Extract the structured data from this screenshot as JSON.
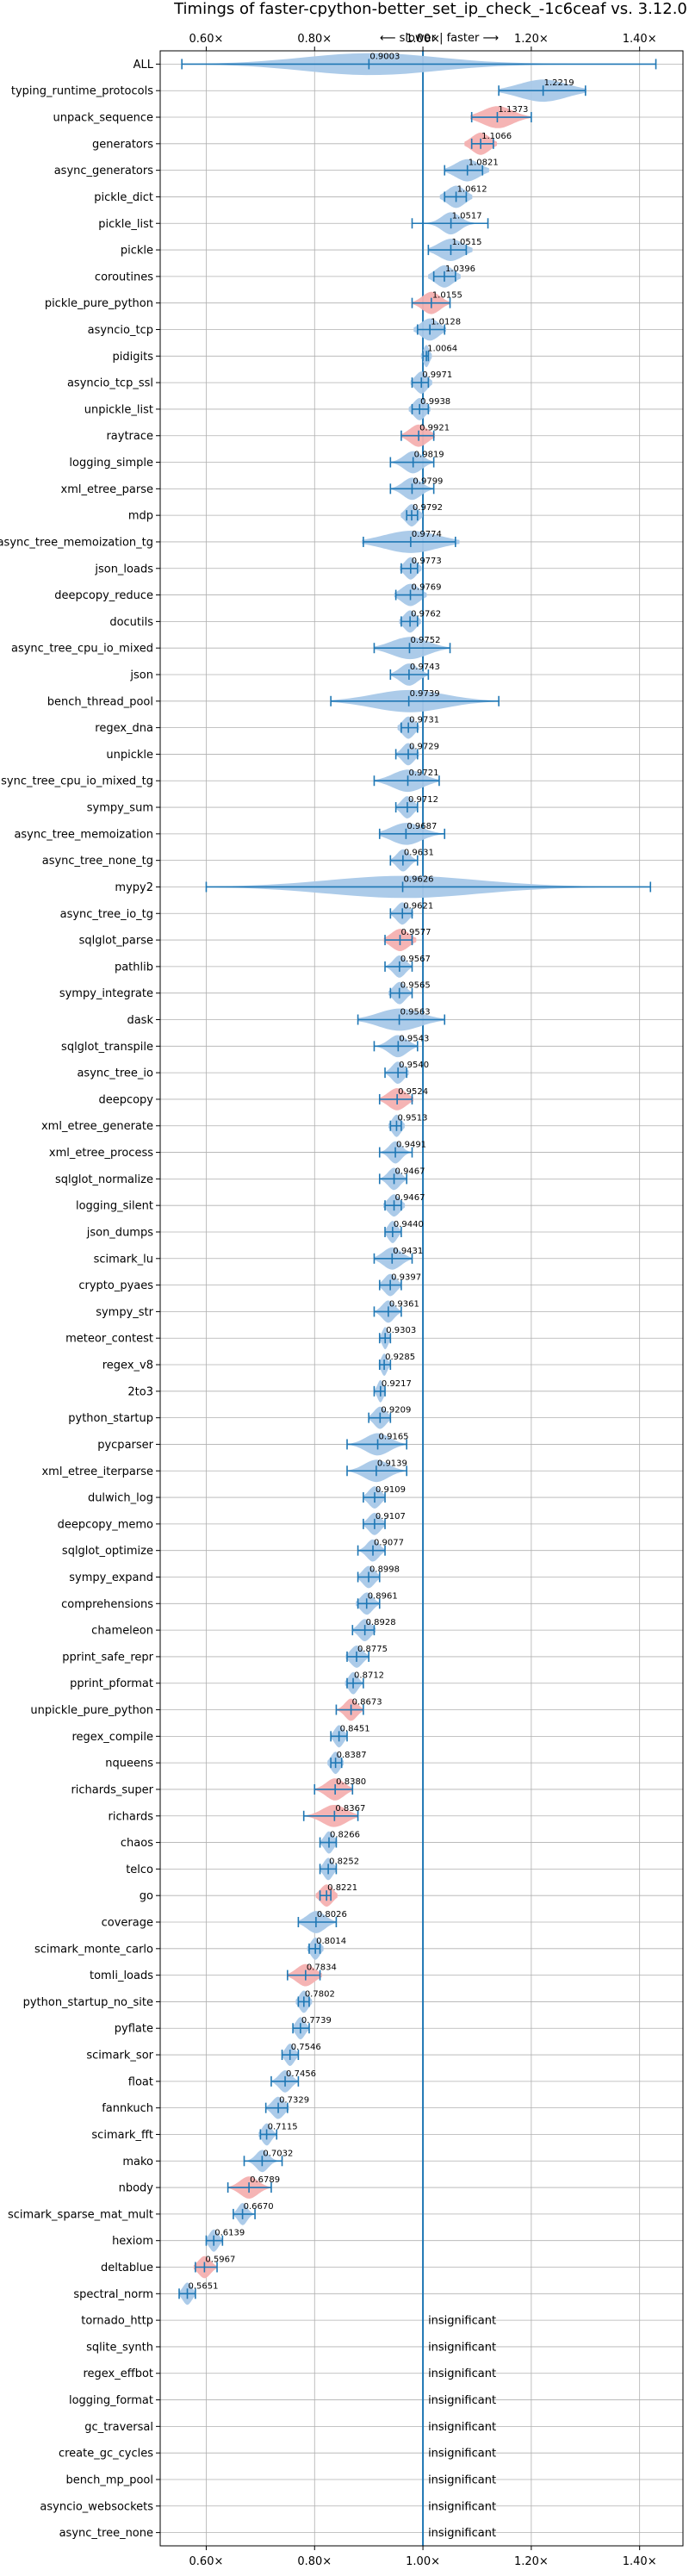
{
  "chart_data": {
    "type": "violin",
    "title": "Timings of faster-cpython-better_set_ip_check_-1c6ceaf vs. 3.12.0",
    "subtitle": "⟵ slower  |  faster ⟶",
    "x_ticks": [
      "0.60×",
      "0.80×",
      "1.00×",
      "1.20×",
      "1.40×"
    ],
    "x_tick_values": [
      0.6,
      0.8,
      1.0,
      1.2,
      1.4
    ],
    "xlim": [
      0.515,
      1.48
    ],
    "reference_line": 1.0,
    "grid": true,
    "colors": {
      "violin": "#a8c8e8",
      "violin_highlight": "#f4b0b0",
      "stat": "#1f77b4",
      "ref": "#1f77b4"
    },
    "benchmarks": [
      {
        "name": "ALL",
        "value": 0.9003,
        "label": "0.9003",
        "low": 0.555,
        "high": 1.43,
        "spread": 0.22,
        "highlight": false
      },
      {
        "name": "typing_runtime_protocols",
        "value": 1.2219,
        "label": "1.2219",
        "low": 1.14,
        "high": 1.3,
        "spread": 0.08,
        "highlight": false
      },
      {
        "name": "unpack_sequence",
        "value": 1.1373,
        "label": "1.1373",
        "low": 1.09,
        "high": 1.2,
        "spread": 0.05,
        "highlight": true
      },
      {
        "name": "generators",
        "value": 1.1066,
        "label": "1.1066",
        "low": 1.09,
        "high": 1.13,
        "spread": 0.03,
        "highlight": true
      },
      {
        "name": "async_generators",
        "value": 1.0821,
        "label": "1.0821",
        "low": 1.04,
        "high": 1.11,
        "spread": 0.04,
        "highlight": false
      },
      {
        "name": "pickle_dict",
        "value": 1.0612,
        "label": "1.0612",
        "low": 1.04,
        "high": 1.08,
        "spread": 0.03,
        "highlight": false
      },
      {
        "name": "pickle_list",
        "value": 1.0517,
        "label": "1.0517",
        "low": 0.98,
        "high": 1.12,
        "spread": 0.03,
        "highlight": false
      },
      {
        "name": "pickle",
        "value": 1.0515,
        "label": "1.0515",
        "low": 1.01,
        "high": 1.08,
        "spread": 0.04,
        "highlight": false
      },
      {
        "name": "coroutines",
        "value": 1.0396,
        "label": "1.0396",
        "low": 1.02,
        "high": 1.06,
        "spread": 0.03,
        "highlight": false
      },
      {
        "name": "pickle_pure_python",
        "value": 1.0155,
        "label": "1.0155",
        "low": 0.98,
        "high": 1.05,
        "spread": 0.03,
        "highlight": true
      },
      {
        "name": "asyncio_tcp",
        "value": 1.0128,
        "label": "1.0128",
        "low": 0.99,
        "high": 1.04,
        "spread": 0.03,
        "highlight": false
      },
      {
        "name": "pidigits",
        "value": 1.0064,
        "label": "1.0064",
        "low": 1.0,
        "high": 1.01,
        "spread": 0.01,
        "highlight": false
      },
      {
        "name": "asyncio_tcp_ssl",
        "value": 0.9971,
        "label": "0.9971",
        "low": 0.98,
        "high": 1.01,
        "spread": 0.02,
        "highlight": false
      },
      {
        "name": "unpickle_list",
        "value": 0.9938,
        "label": "0.9938",
        "low": 0.98,
        "high": 1.01,
        "spread": 0.02,
        "highlight": false
      },
      {
        "name": "raytrace",
        "value": 0.9921,
        "label": "0.9921",
        "low": 0.96,
        "high": 1.02,
        "spread": 0.03,
        "highlight": true
      },
      {
        "name": "logging_simple",
        "value": 0.9819,
        "label": "0.9819",
        "low": 0.94,
        "high": 1.02,
        "spread": 0.03,
        "highlight": false
      },
      {
        "name": "xml_etree_parse",
        "value": 0.9799,
        "label": "0.9799",
        "low": 0.94,
        "high": 1.02,
        "spread": 0.03,
        "highlight": false
      },
      {
        "name": "mdp",
        "value": 0.9792,
        "label": "0.9792",
        "low": 0.97,
        "high": 0.99,
        "spread": 0.02,
        "highlight": false
      },
      {
        "name": "async_tree_memoization_tg",
        "value": 0.9774,
        "label": "0.9774",
        "low": 0.89,
        "high": 1.06,
        "spread": 0.09,
        "highlight": false
      },
      {
        "name": "json_loads",
        "value": 0.9773,
        "label": "0.9773",
        "low": 0.96,
        "high": 0.99,
        "spread": 0.02,
        "highlight": false
      },
      {
        "name": "deepcopy_reduce",
        "value": 0.9769,
        "label": "0.9769",
        "low": 0.95,
        "high": 1.0,
        "spread": 0.03,
        "highlight": false
      },
      {
        "name": "docutils",
        "value": 0.9762,
        "label": "0.9762",
        "low": 0.96,
        "high": 0.99,
        "spread": 0.02,
        "highlight": false
      },
      {
        "name": "async_tree_cpu_io_mixed",
        "value": 0.9752,
        "label": "0.9752",
        "low": 0.91,
        "high": 1.05,
        "spread": 0.06,
        "highlight": false
      },
      {
        "name": "json",
        "value": 0.9743,
        "label": "0.9743",
        "low": 0.94,
        "high": 1.01,
        "spread": 0.03,
        "highlight": false
      },
      {
        "name": "bench_thread_pool",
        "value": 0.9739,
        "label": "0.9739",
        "low": 0.83,
        "high": 1.14,
        "spread": 0.12,
        "highlight": false
      },
      {
        "name": "regex_dna",
        "value": 0.9731,
        "label": "0.9731",
        "low": 0.96,
        "high": 0.99,
        "spread": 0.02,
        "highlight": false
      },
      {
        "name": "unpickle",
        "value": 0.9729,
        "label": "0.9729",
        "low": 0.95,
        "high": 0.99,
        "spread": 0.02,
        "highlight": false
      },
      {
        "name": "async_tree_cpu_io_mixed_tg",
        "value": 0.9721,
        "label": "0.9721",
        "low": 0.91,
        "high": 1.03,
        "spread": 0.05,
        "highlight": false
      },
      {
        "name": "sympy_sum",
        "value": 0.9712,
        "label": "0.9712",
        "low": 0.95,
        "high": 0.99,
        "spread": 0.02,
        "highlight": false
      },
      {
        "name": "async_tree_memoization",
        "value": 0.9687,
        "label": "0.9687",
        "low": 0.92,
        "high": 1.04,
        "spread": 0.05,
        "highlight": false
      },
      {
        "name": "async_tree_none_tg",
        "value": 0.9631,
        "label": "0.9631",
        "low": 0.94,
        "high": 0.99,
        "spread": 0.02,
        "highlight": false
      },
      {
        "name": "mypy2",
        "value": 0.9626,
        "label": "0.9626",
        "low": 0.6,
        "high": 1.42,
        "spread": 0.25,
        "highlight": false
      },
      {
        "name": "async_tree_io_tg",
        "value": 0.9621,
        "label": "0.9621",
        "low": 0.94,
        "high": 0.98,
        "spread": 0.02,
        "highlight": false
      },
      {
        "name": "sqlglot_parse",
        "value": 0.9577,
        "label": "0.9577",
        "low": 0.93,
        "high": 0.98,
        "spread": 0.03,
        "highlight": true
      },
      {
        "name": "pathlib",
        "value": 0.9567,
        "label": "0.9567",
        "low": 0.93,
        "high": 0.98,
        "spread": 0.02,
        "highlight": false
      },
      {
        "name": "sympy_integrate",
        "value": 0.9565,
        "label": "0.9565",
        "low": 0.94,
        "high": 0.98,
        "spread": 0.02,
        "highlight": false
      },
      {
        "name": "dask",
        "value": 0.9563,
        "label": "0.9563",
        "low": 0.88,
        "high": 1.04,
        "spread": 0.07,
        "highlight": false
      },
      {
        "name": "sqlglot_transpile",
        "value": 0.9543,
        "label": "0.9543",
        "low": 0.91,
        "high": 0.99,
        "spread": 0.03,
        "highlight": false
      },
      {
        "name": "async_tree_io",
        "value": 0.954,
        "label": "0.9540",
        "low": 0.93,
        "high": 0.97,
        "spread": 0.02,
        "highlight": false
      },
      {
        "name": "deepcopy",
        "value": 0.9524,
        "label": "0.9524",
        "low": 0.92,
        "high": 0.98,
        "spread": 0.03,
        "highlight": true
      },
      {
        "name": "xml_etree_generate",
        "value": 0.9513,
        "label": "0.9513",
        "low": 0.94,
        "high": 0.96,
        "spread": 0.015,
        "highlight": false
      },
      {
        "name": "xml_etree_process",
        "value": 0.9491,
        "label": "0.9491",
        "low": 0.92,
        "high": 0.98,
        "spread": 0.02,
        "highlight": false
      },
      {
        "name": "sqlglot_normalize",
        "value": 0.9467,
        "label": "0.9467",
        "low": 0.92,
        "high": 0.97,
        "spread": 0.02,
        "highlight": false
      },
      {
        "name": "logging_silent",
        "value": 0.9467,
        "label": "0.9467",
        "low": 0.93,
        "high": 0.96,
        "spread": 0.02,
        "highlight": false
      },
      {
        "name": "json_dumps",
        "value": 0.944,
        "label": "0.9440",
        "low": 0.93,
        "high": 0.96,
        "spread": 0.015,
        "highlight": false
      },
      {
        "name": "scimark_lu",
        "value": 0.9431,
        "label": "0.9431",
        "low": 0.91,
        "high": 0.98,
        "spread": 0.03,
        "highlight": false
      },
      {
        "name": "crypto_pyaes",
        "value": 0.9397,
        "label": "0.9397",
        "low": 0.92,
        "high": 0.96,
        "spread": 0.02,
        "highlight": false
      },
      {
        "name": "sympy_str",
        "value": 0.9361,
        "label": "0.9361",
        "low": 0.91,
        "high": 0.96,
        "spread": 0.02,
        "highlight": false
      },
      {
        "name": "meteor_contest",
        "value": 0.9303,
        "label": "0.9303",
        "low": 0.92,
        "high": 0.94,
        "spread": 0.01,
        "highlight": false
      },
      {
        "name": "regex_v8",
        "value": 0.9285,
        "label": "0.9285",
        "low": 0.92,
        "high": 0.94,
        "spread": 0.01,
        "highlight": false
      },
      {
        "name": "2to3",
        "value": 0.9217,
        "label": "0.9217",
        "low": 0.91,
        "high": 0.93,
        "spread": 0.01,
        "highlight": false
      },
      {
        "name": "python_startup",
        "value": 0.9209,
        "label": "0.9209",
        "low": 0.9,
        "high": 0.94,
        "spread": 0.02,
        "highlight": false
      },
      {
        "name": "pycparser",
        "value": 0.9165,
        "label": "0.9165",
        "low": 0.86,
        "high": 0.97,
        "spread": 0.04,
        "highlight": false
      },
      {
        "name": "xml_etree_iterparse",
        "value": 0.9139,
        "label": "0.9139",
        "low": 0.86,
        "high": 0.97,
        "spread": 0.04,
        "highlight": false
      },
      {
        "name": "dulwich_log",
        "value": 0.9109,
        "label": "0.9109",
        "low": 0.89,
        "high": 0.93,
        "spread": 0.02,
        "highlight": false
      },
      {
        "name": "deepcopy_memo",
        "value": 0.9107,
        "label": "0.9107",
        "low": 0.89,
        "high": 0.93,
        "spread": 0.02,
        "highlight": false
      },
      {
        "name": "sqlglot_optimize",
        "value": 0.9077,
        "label": "0.9077",
        "low": 0.88,
        "high": 0.93,
        "spread": 0.02,
        "highlight": false
      },
      {
        "name": "sympy_expand",
        "value": 0.8998,
        "label": "0.8998",
        "low": 0.88,
        "high": 0.92,
        "spread": 0.02,
        "highlight": false
      },
      {
        "name": "comprehensions",
        "value": 0.8961,
        "label": "0.8961",
        "low": 0.88,
        "high": 0.92,
        "spread": 0.02,
        "highlight": false
      },
      {
        "name": "chameleon",
        "value": 0.8928,
        "label": "0.8928",
        "low": 0.87,
        "high": 0.91,
        "spread": 0.02,
        "highlight": false
      },
      {
        "name": "pprint_safe_repr",
        "value": 0.8775,
        "label": "0.8775",
        "low": 0.86,
        "high": 0.9,
        "spread": 0.02,
        "highlight": false
      },
      {
        "name": "pprint_pformat",
        "value": 0.8712,
        "label": "0.8712",
        "low": 0.86,
        "high": 0.89,
        "spread": 0.015,
        "highlight": false
      },
      {
        "name": "unpickle_pure_python",
        "value": 0.8673,
        "label": "0.8673",
        "low": 0.84,
        "high": 0.89,
        "spread": 0.02,
        "highlight": true
      },
      {
        "name": "regex_compile",
        "value": 0.8451,
        "label": "0.8451",
        "low": 0.83,
        "high": 0.86,
        "spread": 0.015,
        "highlight": false
      },
      {
        "name": "nqueens",
        "value": 0.8387,
        "label": "0.8387",
        "low": 0.83,
        "high": 0.85,
        "spread": 0.015,
        "highlight": false
      },
      {
        "name": "richards_super",
        "value": 0.838,
        "label": "0.8380",
        "low": 0.8,
        "high": 0.87,
        "spread": 0.03,
        "highlight": true
      },
      {
        "name": "richards",
        "value": 0.8367,
        "label": "0.8367",
        "low": 0.78,
        "high": 0.88,
        "spread": 0.04,
        "highlight": true
      },
      {
        "name": "chaos",
        "value": 0.8266,
        "label": "0.8266",
        "low": 0.81,
        "high": 0.84,
        "spread": 0.015,
        "highlight": false
      },
      {
        "name": "telco",
        "value": 0.8252,
        "label": "0.8252",
        "low": 0.81,
        "high": 0.84,
        "spread": 0.015,
        "highlight": false
      },
      {
        "name": "go",
        "value": 0.8221,
        "label": "0.8221",
        "low": 0.81,
        "high": 0.83,
        "spread": 0.02,
        "highlight": true
      },
      {
        "name": "coverage",
        "value": 0.8026,
        "label": "0.8026",
        "low": 0.77,
        "high": 0.84,
        "spread": 0.03,
        "highlight": false
      },
      {
        "name": "scimark_monte_carlo",
        "value": 0.8014,
        "label": "0.8014",
        "low": 0.79,
        "high": 0.81,
        "spread": 0.015,
        "highlight": false
      },
      {
        "name": "tomli_loads",
        "value": 0.7834,
        "label": "0.7834",
        "low": 0.75,
        "high": 0.81,
        "spread": 0.03,
        "highlight": true
      },
      {
        "name": "python_startup_no_site",
        "value": 0.7802,
        "label": "0.7802",
        "low": 0.77,
        "high": 0.79,
        "spread": 0.015,
        "highlight": false
      },
      {
        "name": "pyflate",
        "value": 0.7739,
        "label": "0.7739",
        "low": 0.76,
        "high": 0.79,
        "spread": 0.015,
        "highlight": false
      },
      {
        "name": "scimark_sor",
        "value": 0.7546,
        "label": "0.7546",
        "low": 0.74,
        "high": 0.77,
        "spread": 0.015,
        "highlight": false
      },
      {
        "name": "float",
        "value": 0.7456,
        "label": "0.7456",
        "low": 0.72,
        "high": 0.77,
        "spread": 0.02,
        "highlight": false
      },
      {
        "name": "fannkuch",
        "value": 0.7329,
        "label": "0.7329",
        "low": 0.71,
        "high": 0.75,
        "spread": 0.02,
        "highlight": false
      },
      {
        "name": "scimark_fft",
        "value": 0.7115,
        "label": "0.7115",
        "low": 0.7,
        "high": 0.73,
        "spread": 0.015,
        "highlight": false
      },
      {
        "name": "mako",
        "value": 0.7032,
        "label": "0.7032",
        "low": 0.67,
        "high": 0.74,
        "spread": 0.02,
        "highlight": false
      },
      {
        "name": "nbody",
        "value": 0.6789,
        "label": "0.6789",
        "low": 0.64,
        "high": 0.72,
        "spread": 0.03,
        "highlight": true
      },
      {
        "name": "scimark_sparse_mat_mult",
        "value": 0.667,
        "label": "0.6670",
        "low": 0.65,
        "high": 0.69,
        "spread": 0.015,
        "highlight": false
      },
      {
        "name": "hexiom",
        "value": 0.6139,
        "label": "0.6139",
        "low": 0.6,
        "high": 0.63,
        "spread": 0.015,
        "highlight": false
      },
      {
        "name": "deltablue",
        "value": 0.5967,
        "label": "0.5967",
        "low": 0.58,
        "high": 0.62,
        "spread": 0.02,
        "highlight": true
      },
      {
        "name": "spectral_norm",
        "value": 0.5651,
        "label": "0.5651",
        "low": 0.55,
        "high": 0.58,
        "spread": 0.015,
        "highlight": false
      },
      {
        "name": "tornado_http",
        "value": null,
        "label": "insignificant"
      },
      {
        "name": "sqlite_synth",
        "value": null,
        "label": "insignificant"
      },
      {
        "name": "regex_effbot",
        "value": null,
        "label": "insignificant"
      },
      {
        "name": "logging_format",
        "value": null,
        "label": "insignificant"
      },
      {
        "name": "gc_traversal",
        "value": null,
        "label": "insignificant"
      },
      {
        "name": "create_gc_cycles",
        "value": null,
        "label": "insignificant"
      },
      {
        "name": "bench_mp_pool",
        "value": null,
        "label": "insignificant"
      },
      {
        "name": "asyncio_websockets",
        "value": null,
        "label": "insignificant"
      },
      {
        "name": "async_tree_none",
        "value": null,
        "label": "insignificant"
      }
    ]
  }
}
